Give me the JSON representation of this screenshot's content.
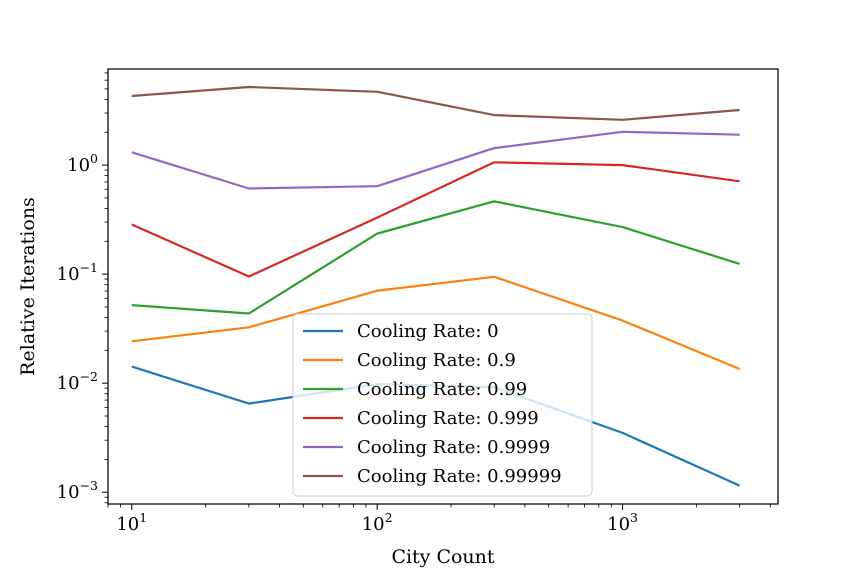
{
  "chart_data": {
    "type": "line",
    "xscale": "log",
    "yscale": "log",
    "xlabel": "City Count",
    "ylabel": "Relative Iterations",
    "xlim": [
      8,
      4300
    ],
    "ylim": [
      0.00078,
      7.6
    ],
    "grid": false,
    "legend_position": "lower-center",
    "x": [
      10,
      30,
      100,
      300,
      1000,
      3000
    ],
    "x_major_ticks": [
      {
        "value": 10,
        "base": "10",
        "exp": "1"
      },
      {
        "value": 100,
        "base": "10",
        "exp": "2"
      },
      {
        "value": 1000,
        "base": "10",
        "exp": "3"
      }
    ],
    "y_major_ticks": [
      {
        "value": 0.001,
        "base": "10",
        "exp": "−3"
      },
      {
        "value": 0.01,
        "base": "10",
        "exp": "−2"
      },
      {
        "value": 0.1,
        "base": "10",
        "exp": "−1"
      },
      {
        "value": 1,
        "base": "10",
        "exp": "0"
      }
    ],
    "series": [
      {
        "name": "Cooling Rate: 0",
        "color": "#1f77b4",
        "values": [
          0.0142,
          0.0065,
          0.0098,
          0.0092,
          0.0035,
          0.00115
        ]
      },
      {
        "name": "Cooling Rate: 0.9",
        "color": "#ff7f0e",
        "values": [
          0.0242,
          0.0325,
          0.0705,
          0.0945,
          0.0375,
          0.0135
        ]
      },
      {
        "name": "Cooling Rate: 0.99",
        "color": "#2ca02c",
        "values": [
          0.052,
          0.0435,
          0.235,
          0.465,
          0.27,
          0.124
        ]
      },
      {
        "name": "Cooling Rate: 0.999",
        "color": "#d62728",
        "values": [
          0.285,
          0.095,
          0.33,
          1.06,
          1.0,
          0.71
        ]
      },
      {
        "name": "Cooling Rate: 0.9999",
        "color": "#9467bd",
        "values": [
          1.31,
          0.61,
          0.64,
          1.43,
          2.02,
          1.9
        ]
      },
      {
        "name": "Cooling Rate: 0.99999",
        "color": "#8c564b",
        "values": [
          4.3,
          5.2,
          4.7,
          2.87,
          2.6,
          3.2
        ]
      }
    ]
  }
}
